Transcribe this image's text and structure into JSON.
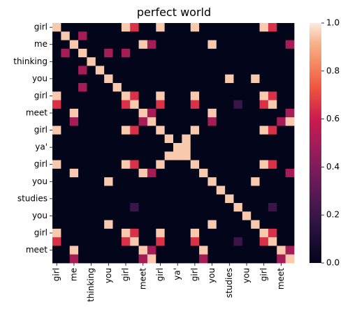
{
  "chart_data": {
    "type": "heatmap",
    "title": "perfect world",
    "xlabel": "",
    "ylabel": "",
    "x_tick_labels": [
      "girl",
      "me",
      "thinking",
      "you",
      "girl",
      "meet",
      "girl",
      "ya'",
      "girl",
      "you",
      "studies",
      "you",
      "girl",
      "meet"
    ],
    "y_tick_labels": [
      "girl",
      "me",
      "thinking",
      "you",
      "girl",
      "meet",
      "girl",
      "ya'",
      "girl",
      "you",
      "studies",
      "you",
      "girl",
      "meet"
    ],
    "n_rows": 28,
    "n_cols": 28,
    "label_every": 2,
    "vmin": 0.0,
    "vmax": 1.0,
    "colorbar_ticks": [
      "0.0",
      "0.2",
      "0.4",
      "0.6",
      "0.8",
      "1.0"
    ],
    "colorbar_tick_values": [
      0.0,
      0.2,
      0.4,
      0.6,
      0.8,
      1.0
    ],
    "colormap": "rocket",
    "default_value": 0.0,
    "cells": [
      [
        0,
        0,
        0.95
      ],
      [
        0,
        8,
        0.95
      ],
      [
        0,
        9,
        0.65
      ],
      [
        0,
        12,
        0.95
      ],
      [
        0,
        16,
        0.95
      ],
      [
        0,
        24,
        0.95
      ],
      [
        0,
        25,
        0.65
      ],
      [
        1,
        1,
        0.95
      ],
      [
        1,
        3,
        0.5
      ],
      [
        2,
        2,
        0.95
      ],
      [
        2,
        10,
        0.95
      ],
      [
        2,
        11,
        0.5
      ],
      [
        2,
        18,
        0.95
      ],
      [
        2,
        27,
        0.5
      ],
      [
        3,
        1,
        0.5
      ],
      [
        3,
        3,
        0.95
      ],
      [
        3,
        6,
        0.5
      ],
      [
        3,
        8,
        0.5
      ],
      [
        4,
        4,
        0.95
      ],
      [
        5,
        3,
        0.5
      ],
      [
        5,
        5,
        0.95
      ],
      [
        6,
        6,
        0.95
      ],
      [
        6,
        20,
        0.95
      ],
      [
        6,
        23,
        0.95
      ],
      [
        7,
        3,
        0.5
      ],
      [
        7,
        7,
        0.95
      ],
      [
        8,
        0,
        0.95
      ],
      [
        8,
        8,
        0.95
      ],
      [
        8,
        9,
        0.65
      ],
      [
        8,
        12,
        0.95
      ],
      [
        8,
        16,
        0.95
      ],
      [
        8,
        24,
        0.95
      ],
      [
        8,
        25,
        0.65
      ],
      [
        9,
        0,
        0.65
      ],
      [
        9,
        8,
        0.65
      ],
      [
        9,
        9,
        0.95
      ],
      [
        9,
        12,
        0.65
      ],
      [
        9,
        16,
        0.65
      ],
      [
        9,
        21,
        0.2
      ],
      [
        9,
        24,
        0.65
      ],
      [
        9,
        25,
        0.95
      ],
      [
        10,
        2,
        0.95
      ],
      [
        10,
        10,
        0.95
      ],
      [
        10,
        11,
        0.5
      ],
      [
        10,
        18,
        0.95
      ],
      [
        10,
        27,
        0.5
      ],
      [
        11,
        2,
        0.5
      ],
      [
        11,
        10,
        0.5
      ],
      [
        11,
        11,
        0.95
      ],
      [
        11,
        18,
        0.5
      ],
      [
        11,
        26,
        0.5
      ],
      [
        11,
        27,
        0.95
      ],
      [
        12,
        0,
        0.95
      ],
      [
        12,
        8,
        0.95
      ],
      [
        12,
        9,
        0.65
      ],
      [
        12,
        12,
        0.95
      ],
      [
        12,
        16,
        0.95
      ],
      [
        12,
        24,
        0.95
      ],
      [
        12,
        25,
        0.65
      ],
      [
        13,
        13,
        0.95
      ],
      [
        13,
        15,
        0.95
      ],
      [
        14,
        14,
        0.95
      ],
      [
        14,
        15,
        0.95
      ],
      [
        15,
        13,
        0.95
      ],
      [
        15,
        14,
        0.95
      ],
      [
        15,
        15,
        0.95
      ],
      [
        16,
        0,
        0.95
      ],
      [
        16,
        8,
        0.95
      ],
      [
        16,
        9,
        0.65
      ],
      [
        16,
        12,
        0.95
      ],
      [
        16,
        16,
        0.95
      ],
      [
        16,
        24,
        0.95
      ],
      [
        16,
        25,
        0.65
      ],
      [
        17,
        2,
        0.95
      ],
      [
        17,
        10,
        0.95
      ],
      [
        17,
        11,
        0.5
      ],
      [
        17,
        17,
        0.95
      ],
      [
        17,
        27,
        0.5
      ],
      [
        18,
        6,
        0.95
      ],
      [
        18,
        18,
        0.95
      ],
      [
        18,
        23,
        0.95
      ],
      [
        19,
        19,
        0.95
      ],
      [
        20,
        20,
        0.95
      ],
      [
        21,
        9,
        0.2
      ],
      [
        21,
        21,
        0.95
      ],
      [
        21,
        25,
        0.2
      ],
      [
        22,
        22,
        0.95
      ],
      [
        23,
        6,
        0.95
      ],
      [
        23,
        18,
        0.95
      ],
      [
        23,
        23,
        0.95
      ],
      [
        24,
        0,
        0.95
      ],
      [
        24,
        8,
        0.95
      ],
      [
        24,
        9,
        0.65
      ],
      [
        24,
        12,
        0.95
      ],
      [
        24,
        16,
        0.95
      ],
      [
        24,
        24,
        0.95
      ],
      [
        24,
        25,
        0.65
      ],
      [
        25,
        0,
        0.65
      ],
      [
        25,
        8,
        0.65
      ],
      [
        25,
        9,
        0.95
      ],
      [
        25,
        12,
        0.65
      ],
      [
        25,
        16,
        0.65
      ],
      [
        25,
        21,
        0.2
      ],
      [
        25,
        24,
        0.65
      ],
      [
        25,
        25,
        0.95
      ],
      [
        26,
        2,
        0.95
      ],
      [
        26,
        10,
        0.95
      ],
      [
        26,
        11,
        0.5
      ],
      [
        26,
        17,
        0.95
      ],
      [
        26,
        26,
        0.95
      ],
      [
        26,
        27,
        0.5
      ],
      [
        27,
        2,
        0.5
      ],
      [
        27,
        10,
        0.5
      ],
      [
        27,
        11,
        0.95
      ],
      [
        27,
        17,
        0.5
      ],
      [
        27,
        26,
        0.5
      ],
      [
        27,
        27,
        0.95
      ]
    ]
  }
}
